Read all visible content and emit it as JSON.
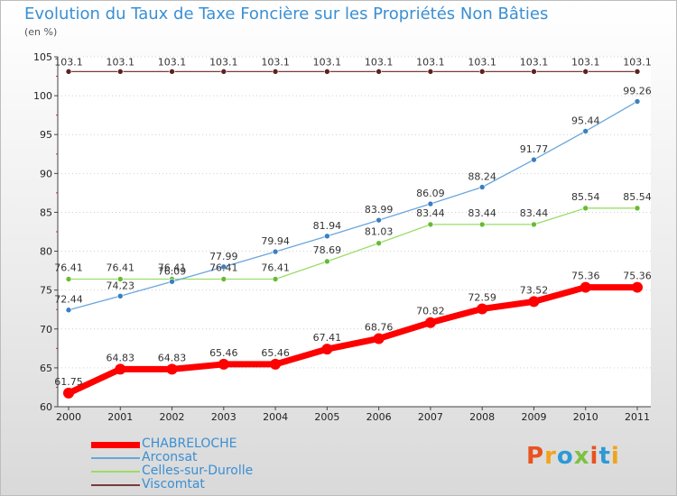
{
  "chart_data": {
    "type": "line",
    "title": "Evolution du Taux de Taxe Foncière sur les Propriétés Non Bâties",
    "unit_label": "(en %)",
    "x": [
      "2000",
      "2001",
      "2002",
      "2003",
      "2004",
      "2005",
      "2006",
      "2007",
      "2008",
      "2009",
      "2010",
      "2011"
    ],
    "ylim": [
      60,
      105
    ],
    "yticks": [
      60,
      65,
      70,
      75,
      80,
      85,
      90,
      95,
      100,
      105
    ],
    "grid": "horizontal dotted",
    "legend_placement": "bottom-left",
    "series": [
      {
        "name": "CHABRELOCHE",
        "color": "#ff0000",
        "values": [
          61.75,
          64.83,
          64.83,
          65.46,
          65.46,
          67.41,
          68.76,
          70.82,
          72.59,
          73.52,
          75.36,
          75.36
        ],
        "labels": [
          "61.75",
          "64.83",
          "64.83",
          "65.46",
          "65.46",
          "67.41",
          "68.76",
          "70.82",
          "72.59",
          "73.52",
          "75.36",
          "75.36"
        ]
      },
      {
        "name": "Arconsat",
        "color": "#6aa6dc",
        "marker": "#3a7fc1",
        "values": [
          72.44,
          74.23,
          76.09,
          77.99,
          79.94,
          81.94,
          83.99,
          86.09,
          88.24,
          91.77,
          95.44,
          99.26
        ],
        "labels": [
          "72.44",
          "74.23",
          "76.09",
          "77.99",
          "79.94",
          "81.94",
          "83.99",
          "86.09",
          "88.24",
          "91.77",
          "95.44",
          "99.26"
        ]
      },
      {
        "name": "Celles-sur-Durolle",
        "color": "#99dd66",
        "marker": "#66bb33",
        "values": [
          76.41,
          76.41,
          76.41,
          76.41,
          76.41,
          78.69,
          81.03,
          83.44,
          83.44,
          83.44,
          85.54,
          85.54
        ],
        "labels": [
          "76.41",
          "76.41",
          "76.41",
          "76.41",
          "76.41",
          "78.69",
          "81.03",
          "83.44",
          "83.44",
          "83.44",
          "85.54",
          "85.54"
        ]
      },
      {
        "name": "Viscomtat",
        "color": "#7a3b3b",
        "marker": "#5c2222",
        "values": [
          103.1,
          103.1,
          103.1,
          103.1,
          103.1,
          103.1,
          103.1,
          103.1,
          103.1,
          103.1,
          103.1,
          103.1
        ],
        "labels": [
          "103.1",
          "103.1",
          "103.1",
          "103.1",
          "103.1",
          "103.1",
          "103.1",
          "103.1",
          "103.1",
          "103.1",
          "103.1",
          "103.1"
        ]
      }
    ]
  },
  "logo": {
    "text": "Proxiti",
    "colors": [
      "#e8531f",
      "#f2a31b",
      "#2d9ad6",
      "#7cc242",
      "#e8531f",
      "#2d9ad6",
      "#f2a31b"
    ]
  }
}
